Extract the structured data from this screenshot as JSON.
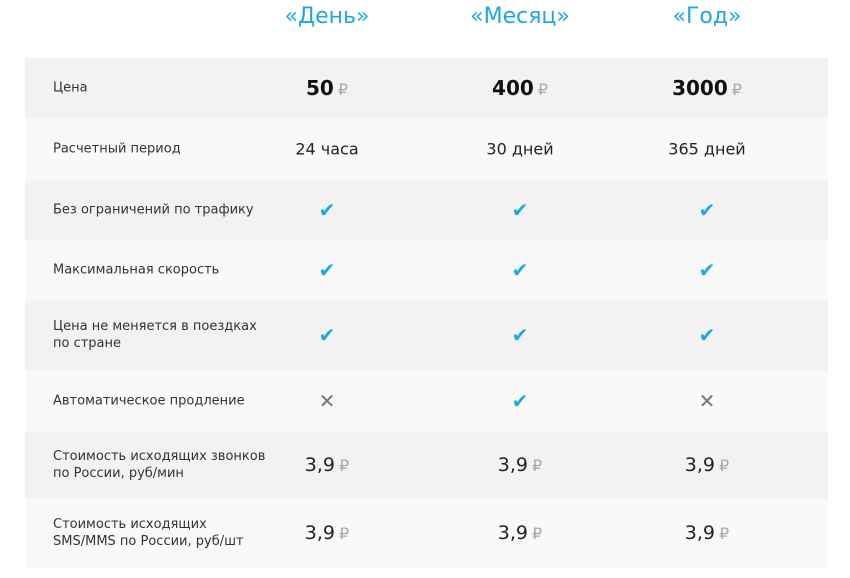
{
  "columns": [
    "«День»",
    "«Месяц»",
    "«Год»"
  ],
  "accent_color": "#1fa8e0",
  "currency": "₽",
  "rows": [
    {
      "label": "Цена",
      "type": "price",
      "values": [
        "50",
        "400",
        "3000"
      ]
    },
    {
      "label": "Расчетный период",
      "type": "text",
      "values": [
        "24 часа",
        "30 дней",
        "365 дней"
      ]
    },
    {
      "label": "Без ограничений по трафику",
      "type": "bool",
      "values": [
        true,
        true,
        true
      ]
    },
    {
      "label": "Максимальная скорость",
      "type": "bool",
      "values": [
        true,
        true,
        true
      ]
    },
    {
      "label": "Цена не меняется в поездках по стране",
      "type": "bool",
      "values": [
        true,
        true,
        true
      ]
    },
    {
      "label": "Автоматическое продление",
      "type": "bool",
      "values": [
        false,
        true,
        false
      ]
    },
    {
      "label": "Стоимость исходящих звонков по России, руб/мин",
      "type": "num",
      "values": [
        "3,9",
        "3,9",
        "3,9"
      ]
    },
    {
      "label": "Стоимость исходящих SMS/MMS по России, руб/шт",
      "type": "num",
      "values": [
        "3,9",
        "3,9",
        "3,9"
      ]
    }
  ]
}
